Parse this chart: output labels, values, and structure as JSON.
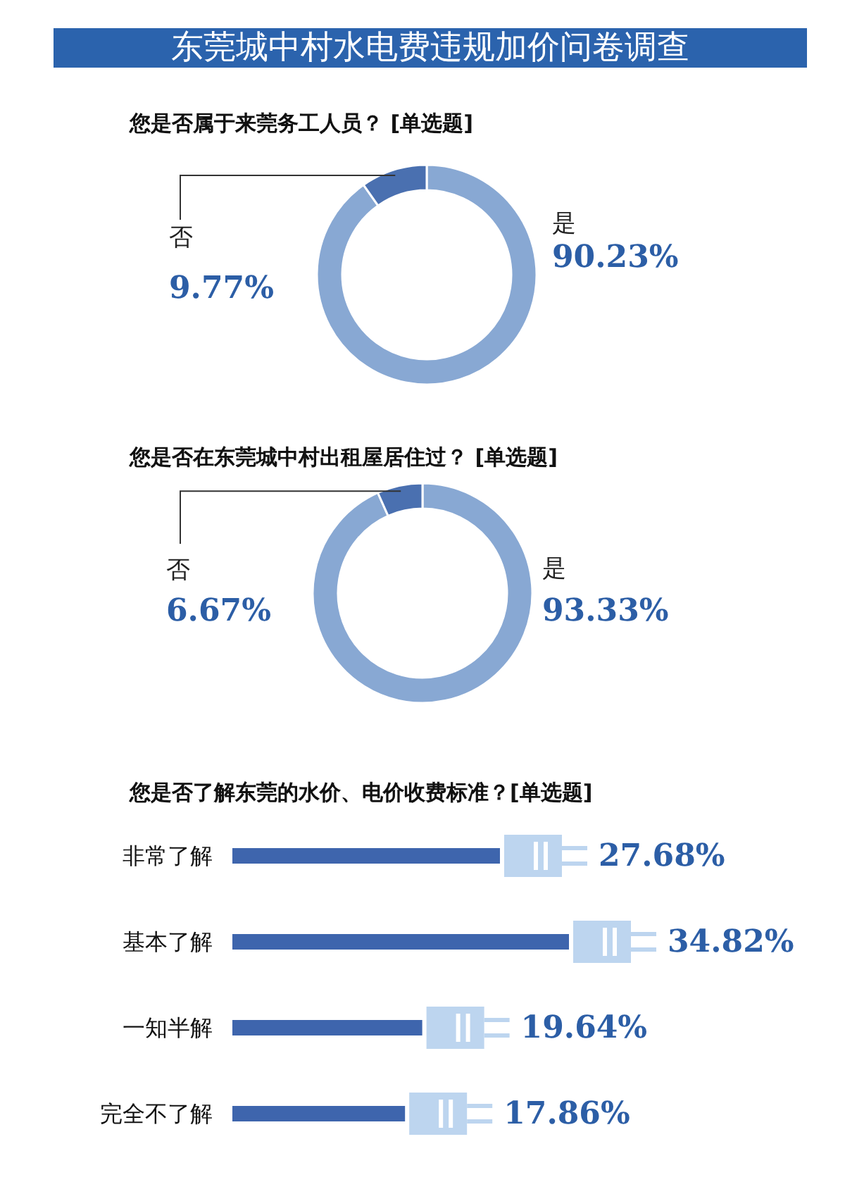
{
  "chart_data": [
    {
      "type": "donut",
      "title": "东莞城中村水电费违规加价问卷调查",
      "subtitle": "您是否属于来莞务工人员？ [单选题]",
      "categories": [
        "是",
        "否"
      ],
      "values": [
        90.23,
        9.77
      ],
      "colors": [
        "#88a8d3",
        "#4a70b0"
      ],
      "value_labels": [
        "90.23%",
        "9.77%"
      ]
    },
    {
      "type": "donut",
      "title": "您是否在东莞城中村出租屋居住过？ [单选题]",
      "categories": [
        "是",
        "否"
      ],
      "values": [
        93.33,
        6.67
      ],
      "colors": [
        "#88a8d3",
        "#4a70b0"
      ],
      "value_labels": [
        "93.33%",
        "6.67%"
      ]
    },
    {
      "type": "bar",
      "orientation": "horizontal",
      "title": "您是否了解东莞的水价、电价收费标准？[单选题]",
      "categories": [
        "非常了解",
        "基本了解",
        "一知半解",
        "完全不了解"
      ],
      "values": [
        27.68,
        34.82,
        19.64,
        17.86
      ],
      "color": "#3e65ad",
      "value_labels": [
        "27.68%",
        "34.82%",
        "19.64%",
        "17.86%"
      ],
      "tick_labels": "y"
    }
  ]
}
